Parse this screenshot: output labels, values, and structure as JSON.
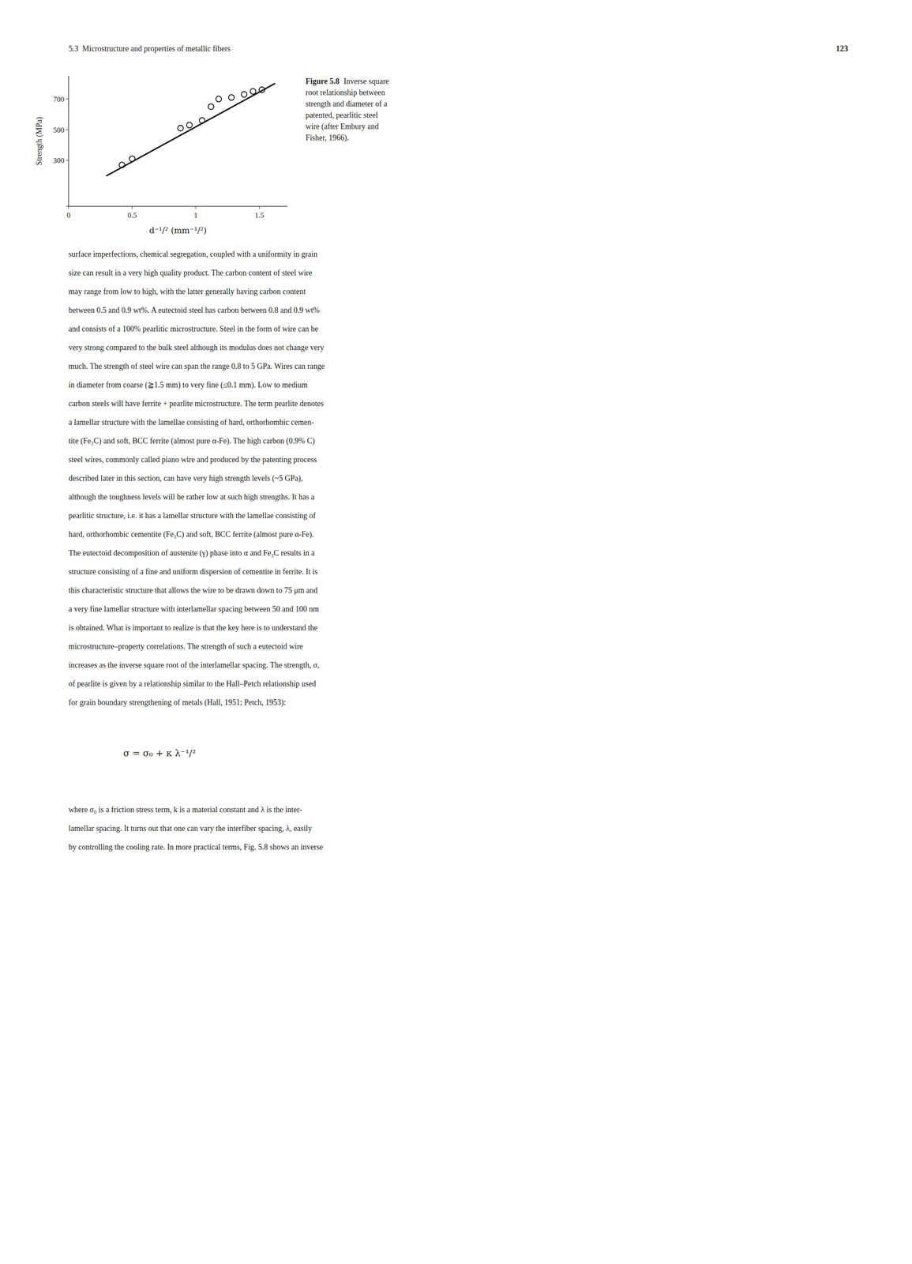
{
  "chart_data": {
    "type": "scatter",
    "ylabel": "Strength (MPa)",
    "xlabel": "d⁻¹/² (mm⁻¹/²)",
    "series": [
      {
        "type": "scatter",
        "marker": "open-circle",
        "color": "#000000",
        "x": [
          0.42,
          0.5,
          0.88,
          0.95,
          1.05,
          1.12,
          1.18,
          1.28,
          1.38,
          1.45,
          1.52
        ],
        "values": [
          270,
          310,
          510,
          530,
          560,
          650,
          700,
          710,
          730,
          750,
          760
        ]
      },
      {
        "type": "line",
        "color": "#000000",
        "x": [
          0.3,
          1.62
        ],
        "values": [
          200,
          800
        ]
      }
    ],
    "xlim": [
      0,
      1.72
    ],
    "ylim": [
      0,
      850
    ],
    "xticks": [
      0,
      0.5,
      1,
      1.5
    ],
    "yticks": [
      {
        "value": 0,
        "label": null
      },
      300,
      500,
      700
    ],
    "grid": false
  },
  "page_text": {
    "header_left": "5.3  Microstructure and properties of metallic fibers",
    "header_right": "123",
    "caption_label": "Figure 5.8",
    "caption_lines": [
      "Inverse square",
      "root relationship between",
      "strength and diameter of a",
      "patented, pearlitic steel",
      "wire (after Embury and",
      "Fisher, 1966)."
    ],
    "body_lines": [
      "surface imperfections, chemical segregation, coupled with a uniformity in grain",
      "size can result in a very high quality product. The carbon content of steel wire",
      "may range from low to high, with the latter generally having carbon content",
      "between 0.5 and 0.9 wt%. A eutectoid steel has carbon between 0.8 and 0.9 wt%",
      "and consists of a 100% pearlitic microstructure. Steel in the form of wire can be",
      "very strong compared to the bulk steel although its modulus does not change very",
      "much. The strength of steel wire can span the range 0.8 to 5 GPa. Wires can range",
      "in diameter from coarse (≧1.5 mm) to very fine (≤0.1 mm). Low to medium",
      "carbon steels will have ferrite + pearlite microstructure. The term pearlite denotes",
      "a lamellar structure with the lamellae consisting of hard, orthorhombic cemen-",
      "tite (Fe₃C) and soft, BCC ferrite (almost pure α-Fe). The high carbon (0.9% C)",
      "steel wires, commonly called piano wire and produced by the patenting process",
      "described later in this section, can have very high strength levels (~5 GPa),",
      "although the toughness levels will be rather low at such high strengths. It has a",
      "pearlitic structure, i.e. it has a lamellar structure with the lamellae consisting of",
      "hard, orthorhombic cementite (Fe₃C) and soft, BCC ferrite (almost pure α-Fe).",
      "The eutectoid decomposition of austenite (γ) phase into α and Fe₃C results in a",
      "structure consisting of a fine and uniform dispersion of cementite in ferrite. It is",
      "this characteristic structure that allows the wire to be drawn down to 75 μm and",
      "a very fine lamellar structure with interlamellar spacing between 50 and 100 nm",
      "is obtained. What is important to realize is that the key here is to understand the",
      "microstructure–property correlations. The strength of such a eutectoid wire",
      "increases as the inverse square root of the interlamellar spacing. The strength, σ,",
      "of pearlite is given by a relationship similar to the Hall–Petch relationship used",
      "for grain boundary strengthening of metals (Hall, 1951; Petch, 1953):"
    ],
    "equation": "σ = σ₀ + κ λ⁻¹/²",
    "body_lines_2": [
      "where σ₀ is a friction stress term, k is a material constant and λ is the inter-",
      "lamellar spacing. It turns out that one can vary the interfiber spacing, λ, easily",
      "by controlling the cooling rate. In more practical terms, Fig. 5.8 shows an inverse"
    ]
  }
}
